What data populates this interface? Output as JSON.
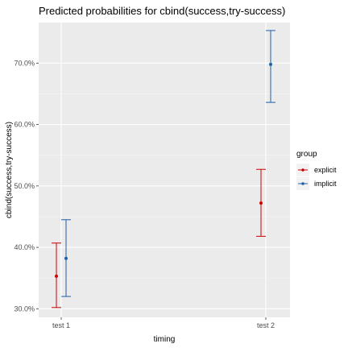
{
  "chart_data": {
    "type": "scatter",
    "title": "Predicted probabilities for cbind(success,try-success)",
    "xlabel": "timing",
    "ylabel": "cbind(success,try-success)",
    "categories": [
      "test 1",
      "test 2"
    ],
    "yticks": [
      30,
      40,
      50,
      60,
      70
    ],
    "ytick_labels": [
      "30.0%",
      "40.0%",
      "50.0%",
      "60.0%",
      "70.0%"
    ],
    "ylim": [
      28.6,
      76.6
    ],
    "grid": true,
    "legend_title": "group",
    "legend_position": "right",
    "series": [
      {
        "name": "explicit",
        "color": "#cc0000",
        "values": [
          35.3,
          47.2
        ],
        "lower": [
          30.2,
          41.8
        ],
        "upper": [
          40.7,
          52.7
        ]
      },
      {
        "name": "implicit",
        "color": "#1f5fa8",
        "values": [
          38.2,
          69.8
        ],
        "lower": [
          32.0,
          63.6
        ],
        "upper": [
          44.5,
          75.3
        ]
      }
    ]
  }
}
